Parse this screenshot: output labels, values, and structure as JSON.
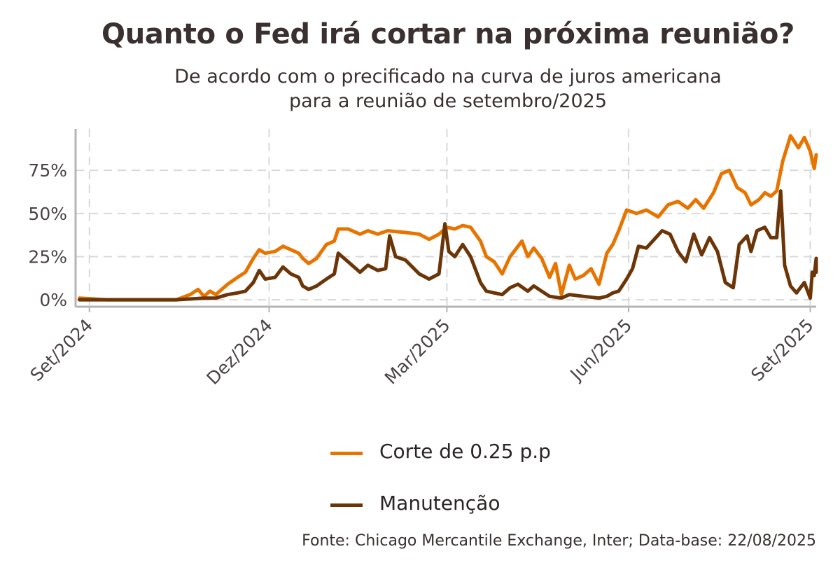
{
  "title": "Quanto o Fed irá cortar na próxima reunião?",
  "subtitle_lines": [
    "De acordo com o precificado na curva de juros americana",
    "para a reunião de setembro/2025"
  ],
  "source": "Fonte: Chicago Mercantile Exchange, Inter; Data-base: 22/08/2025",
  "colors": {
    "cut": "#e87400",
    "hold": "#6b3508",
    "grid": "#d9d9d9",
    "axis": "#b5b5b5",
    "text": "#3a3030"
  },
  "chart_data": {
    "type": "line",
    "title": "Quanto o Fed irá cortar na próxima reunião?",
    "subtitle": "De acordo com o precificado na curva de juros americana para a reunião de setembro/2025",
    "xlabel": "",
    "ylabel": "",
    "x_axis": {
      "type": "date",
      "range": [
        "2024-08-25",
        "2025-09-04"
      ],
      "ticks": [
        "2024-09-01",
        "2024-12-01",
        "2025-03-01",
        "2025-06-01",
        "2025-09-01"
      ],
      "tick_labels": [
        "Set/2024",
        "Dez/2024",
        "Mar/2025",
        "Jun/2025",
        "Set/2025"
      ]
    },
    "y_axis": {
      "range": [
        -0.04,
        0.99
      ],
      "ticks": [
        0,
        0.25,
        0.5,
        0.75
      ],
      "tick_labels": [
        "0%",
        "25%",
        "50%",
        "75%"
      ]
    },
    "grid": true,
    "legend": {
      "position": "bottom",
      "entries": [
        "Corte de 0.25 p.p",
        "Manutenção"
      ]
    },
    "series": [
      {
        "name": "Corte de 0.25 p.p",
        "color": "#e87400",
        "points": [
          [
            "2024-08-27",
            0.01
          ],
          [
            "2024-09-10",
            0.0
          ],
          [
            "2024-10-01",
            0.0
          ],
          [
            "2024-10-15",
            0.0
          ],
          [
            "2024-10-22",
            0.03
          ],
          [
            "2024-10-26",
            0.06
          ],
          [
            "2024-10-29",
            0.02
          ],
          [
            "2024-11-01",
            0.05
          ],
          [
            "2024-11-04",
            0.03
          ],
          [
            "2024-11-10",
            0.09
          ],
          [
            "2024-11-15",
            0.13
          ],
          [
            "2024-11-19",
            0.16
          ],
          [
            "2024-11-23",
            0.24
          ],
          [
            "2024-11-26",
            0.29
          ],
          [
            "2024-11-29",
            0.27
          ],
          [
            "2024-12-04",
            0.28
          ],
          [
            "2024-12-08",
            0.31
          ],
          [
            "2024-12-12",
            0.29
          ],
          [
            "2024-12-16",
            0.27
          ],
          [
            "2024-12-18",
            0.24
          ],
          [
            "2024-12-21",
            0.21
          ],
          [
            "2024-12-25",
            0.24
          ],
          [
            "2024-12-30",
            0.32
          ],
          [
            "2025-01-03",
            0.34
          ],
          [
            "2025-01-05",
            0.41
          ],
          [
            "2025-01-10",
            0.41
          ],
          [
            "2025-01-16",
            0.38
          ],
          [
            "2025-01-20",
            0.4
          ],
          [
            "2025-01-25",
            0.38
          ],
          [
            "2025-01-30",
            0.4
          ],
          [
            "2025-02-08",
            0.39
          ],
          [
            "2025-02-15",
            0.38
          ],
          [
            "2025-02-20",
            0.35
          ],
          [
            "2025-02-25",
            0.38
          ],
          [
            "2025-03-01",
            0.42
          ],
          [
            "2025-03-05",
            0.41
          ],
          [
            "2025-03-09",
            0.43
          ],
          [
            "2025-03-13",
            0.42
          ],
          [
            "2025-03-18",
            0.34
          ],
          [
            "2025-03-21",
            0.25
          ],
          [
            "2025-03-25",
            0.22
          ],
          [
            "2025-03-29",
            0.15
          ],
          [
            "2025-04-02",
            0.25
          ],
          [
            "2025-04-06",
            0.31
          ],
          [
            "2025-04-08",
            0.34
          ],
          [
            "2025-04-11",
            0.25
          ],
          [
            "2025-04-14",
            0.3
          ],
          [
            "2025-04-18",
            0.24
          ],
          [
            "2025-04-22",
            0.13
          ],
          [
            "2025-04-25",
            0.21
          ],
          [
            "2025-04-28",
            0.03
          ],
          [
            "2025-05-02",
            0.2
          ],
          [
            "2025-05-05",
            0.12
          ],
          [
            "2025-05-09",
            0.14
          ],
          [
            "2025-05-13",
            0.18
          ],
          [
            "2025-05-17",
            0.09
          ],
          [
            "2025-05-21",
            0.27
          ],
          [
            "2025-05-24",
            0.32
          ],
          [
            "2025-05-27",
            0.4
          ],
          [
            "2025-05-31",
            0.52
          ],
          [
            "2025-06-05",
            0.5
          ],
          [
            "2025-06-10",
            0.52
          ],
          [
            "2025-06-16",
            0.48
          ],
          [
            "2025-06-21",
            0.55
          ],
          [
            "2025-06-26",
            0.57
          ],
          [
            "2025-07-01",
            0.53
          ],
          [
            "2025-07-05",
            0.58
          ],
          [
            "2025-07-09",
            0.53
          ],
          [
            "2025-07-14",
            0.62
          ],
          [
            "2025-07-18",
            0.73
          ],
          [
            "2025-07-22",
            0.75
          ],
          [
            "2025-07-26",
            0.65
          ],
          [
            "2025-07-30",
            0.62
          ],
          [
            "2025-08-02",
            0.55
          ],
          [
            "2025-08-06",
            0.58
          ],
          [
            "2025-08-09",
            0.62
          ],
          [
            "2025-08-12",
            0.6
          ],
          [
            "2025-08-15",
            0.63
          ],
          [
            "2025-08-18",
            0.8
          ],
          [
            "2025-08-22",
            0.95
          ],
          [
            "2025-08-26",
            0.88
          ],
          [
            "2025-08-29",
            0.94
          ],
          [
            "2025-09-01",
            0.86
          ],
          [
            "2025-09-03",
            0.76
          ],
          [
            "2025-09-04",
            0.84
          ]
        ]
      },
      {
        "name": "Manutenção",
        "color": "#6b3508",
        "points": [
          [
            "2024-08-27",
            0.0
          ],
          [
            "2024-10-15",
            0.0
          ],
          [
            "2024-10-29",
            0.01
          ],
          [
            "2024-11-04",
            0.01
          ],
          [
            "2024-11-10",
            0.03
          ],
          [
            "2024-11-15",
            0.04
          ],
          [
            "2024-11-19",
            0.05
          ],
          [
            "2024-11-23",
            0.1
          ],
          [
            "2024-11-26",
            0.17
          ],
          [
            "2024-11-29",
            0.12
          ],
          [
            "2024-12-04",
            0.13
          ],
          [
            "2024-12-08",
            0.19
          ],
          [
            "2024-12-12",
            0.15
          ],
          [
            "2024-12-16",
            0.13
          ],
          [
            "2024-12-18",
            0.08
          ],
          [
            "2024-12-21",
            0.06
          ],
          [
            "2024-12-25",
            0.08
          ],
          [
            "2024-12-30",
            0.12
          ],
          [
            "2025-01-03",
            0.15
          ],
          [
            "2025-01-05",
            0.27
          ],
          [
            "2025-01-10",
            0.22
          ],
          [
            "2025-01-16",
            0.16
          ],
          [
            "2025-01-20",
            0.2
          ],
          [
            "2025-01-25",
            0.17
          ],
          [
            "2025-01-29",
            0.18
          ],
          [
            "2025-01-31",
            0.37
          ],
          [
            "2025-02-03",
            0.25
          ],
          [
            "2025-02-08",
            0.23
          ],
          [
            "2025-02-15",
            0.15
          ],
          [
            "2025-02-20",
            0.12
          ],
          [
            "2025-02-25",
            0.15
          ],
          [
            "2025-02-28",
            0.44
          ],
          [
            "2025-03-02",
            0.28
          ],
          [
            "2025-03-05",
            0.25
          ],
          [
            "2025-03-09",
            0.32
          ],
          [
            "2025-03-13",
            0.25
          ],
          [
            "2025-03-18",
            0.1
          ],
          [
            "2025-03-21",
            0.05
          ],
          [
            "2025-03-25",
            0.04
          ],
          [
            "2025-03-29",
            0.03
          ],
          [
            "2025-04-02",
            0.07
          ],
          [
            "2025-04-06",
            0.09
          ],
          [
            "2025-04-11",
            0.05
          ],
          [
            "2025-04-14",
            0.08
          ],
          [
            "2025-04-18",
            0.05
          ],
          [
            "2025-04-22",
            0.02
          ],
          [
            "2025-04-28",
            0.01
          ],
          [
            "2025-05-02",
            0.03
          ],
          [
            "2025-05-09",
            0.02
          ],
          [
            "2025-05-17",
            0.01
          ],
          [
            "2025-05-21",
            0.02
          ],
          [
            "2025-05-24",
            0.04
          ],
          [
            "2025-05-27",
            0.05
          ],
          [
            "2025-05-31",
            0.12
          ],
          [
            "2025-06-03",
            0.18
          ],
          [
            "2025-06-06",
            0.31
          ],
          [
            "2025-06-10",
            0.3
          ],
          [
            "2025-06-14",
            0.35
          ],
          [
            "2025-06-18",
            0.4
          ],
          [
            "2025-06-22",
            0.38
          ],
          [
            "2025-06-26",
            0.28
          ],
          [
            "2025-06-30",
            0.22
          ],
          [
            "2025-07-04",
            0.38
          ],
          [
            "2025-07-08",
            0.26
          ],
          [
            "2025-07-12",
            0.36
          ],
          [
            "2025-07-16",
            0.28
          ],
          [
            "2025-07-20",
            0.1
          ],
          [
            "2025-07-24",
            0.07
          ],
          [
            "2025-07-27",
            0.32
          ],
          [
            "2025-07-31",
            0.37
          ],
          [
            "2025-08-02",
            0.28
          ],
          [
            "2025-08-05",
            0.4
          ],
          [
            "2025-08-09",
            0.42
          ],
          [
            "2025-08-12",
            0.36
          ],
          [
            "2025-08-15",
            0.36
          ],
          [
            "2025-08-17",
            0.63
          ],
          [
            "2025-08-19",
            0.2
          ],
          [
            "2025-08-22",
            0.08
          ],
          [
            "2025-08-25",
            0.04
          ],
          [
            "2025-08-29",
            0.1
          ],
          [
            "2025-09-01",
            0.01
          ],
          [
            "2025-09-02",
            0.16
          ],
          [
            "2025-09-03",
            0.14
          ],
          [
            "2025-09-04",
            0.24
          ],
          [
            "2025-09-04",
            0.16
          ]
        ]
      }
    ]
  }
}
